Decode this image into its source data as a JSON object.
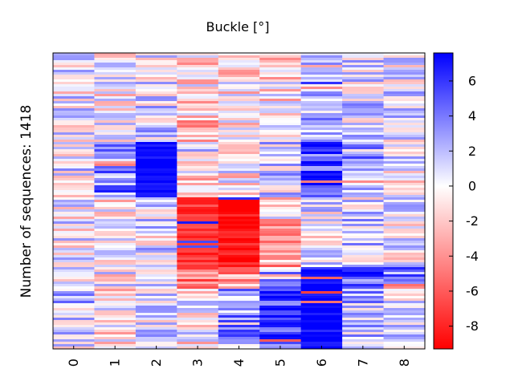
{
  "chart_data": {
    "type": "heatmap",
    "title": "Buckle [°]",
    "ylabel": "Number of sequences: 1418",
    "xlabel": "",
    "columns": [
      "0",
      "1",
      "2",
      "3",
      "4",
      "5",
      "6",
      "7",
      "8"
    ],
    "row_count": 1418,
    "colorbar": {
      "range": [
        -9.3,
        7.6
      ],
      "ticks": [
        "6",
        "4",
        "2",
        "0",
        "-2",
        "-4",
        "-6",
        "-8"
      ],
      "colormap": [
        "#ff0000",
        "#ffffff",
        "#0000ff"
      ]
    },
    "blocks": [
      {
        "from": 0.0,
        "to": 0.3,
        "column_means": [
          0.3,
          -0.5,
          0.8,
          -2.2,
          -1.0,
          -1.0,
          3.0,
          1.0,
          0.5
        ]
      },
      {
        "from": 0.3,
        "to": 0.49,
        "column_means": [
          0.5,
          4.0,
          8.0,
          -1.5,
          -0.5,
          1.0,
          5.5,
          2.5,
          0.0
        ]
      },
      {
        "from": 0.49,
        "to": 0.72,
        "column_means": [
          0.0,
          -0.5,
          0.5,
          -7.5,
          -8.5,
          -3.0,
          0.5,
          1.0,
          0.5
        ]
      },
      {
        "from": 0.72,
        "to": 0.8,
        "column_means": [
          0.0,
          -0.3,
          1.0,
          -5.0,
          -3.5,
          2.0,
          7.0,
          5.0,
          4.0
        ]
      },
      {
        "from": 0.8,
        "to": 1.0,
        "column_means": [
          1.5,
          -0.5,
          0.5,
          -0.5,
          3.0,
          6.0,
          7.5,
          2.0,
          1.5
        ]
      }
    ]
  }
}
